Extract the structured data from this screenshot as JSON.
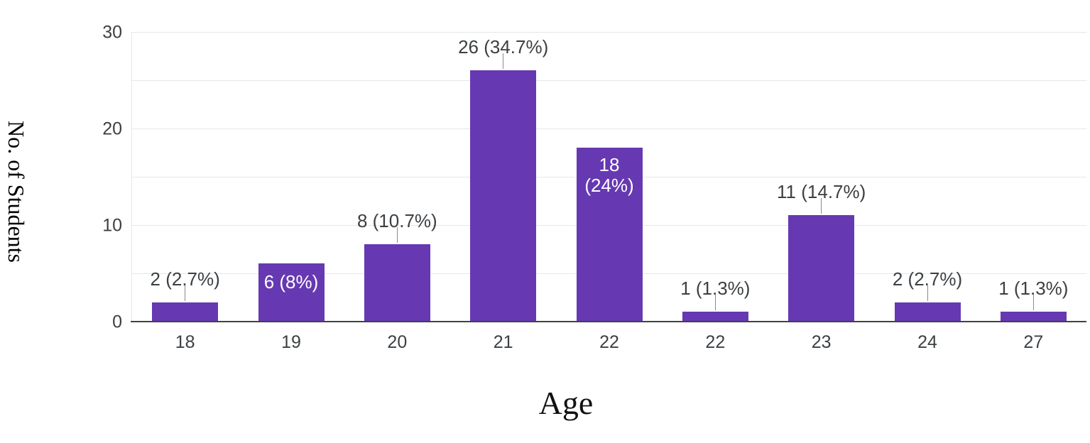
{
  "chart_data": {
    "type": "bar",
    "title": "",
    "xlabel": "Age",
    "ylabel": "No. of Students",
    "categories": [
      "18",
      "19",
      "20",
      "21",
      "22",
      "22",
      "23",
      "24",
      "27"
    ],
    "values": [
      2,
      6,
      8,
      26,
      18,
      1,
      11,
      2,
      1
    ],
    "bar_labels": [
      "2 (2.7%)",
      "6 (8%)",
      "8 (10.7%)",
      "26 (34.7%)",
      "18 (24%)",
      "1 (1.3%)",
      "11 (14.7%)",
      "2 (2.7%)",
      "1 (1.3%)"
    ],
    "label_placement": [
      "outside",
      "inside",
      "outside",
      "outside",
      "inside-stacked",
      "outside",
      "outside",
      "outside",
      "outside"
    ],
    "inside_stacked_lines": {
      "4": [
        "18",
        "(24%)"
      ]
    },
    "y_ticks": [
      "0",
      "10",
      "20",
      "30"
    ],
    "ylim": [
      0,
      30
    ],
    "gridline_step": 5,
    "grid": "on",
    "legend": "none",
    "colors": {
      "bar": "#6639b2",
      "grid": "#e7e7e7",
      "axis_line": "#424242",
      "tick_text": "#3c4043",
      "label_text": "#3c4043",
      "inside_label_text": "#ffffff",
      "connector": "#8a8a8a",
      "background": "#ffffff"
    }
  }
}
